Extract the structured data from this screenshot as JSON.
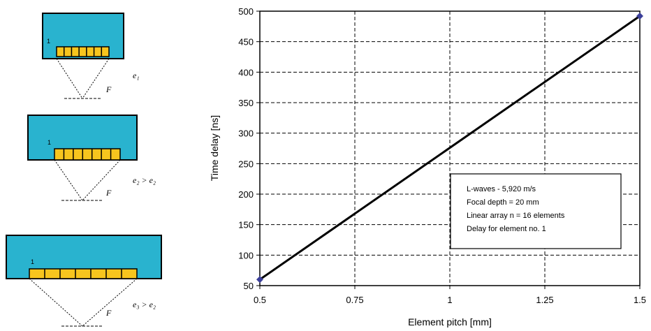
{
  "chart_data": {
    "type": "line",
    "xlabel": "Element pitch [mm]",
    "ylabel": "Time delay [ns]",
    "xlim": [
      0.5,
      1.5
    ],
    "ylim": [
      50,
      500
    ],
    "xticks": [
      "0.5",
      "0.75",
      "1",
      "1.25",
      "1.5"
    ],
    "yticks": [
      "50",
      "100",
      "150",
      "200",
      "250",
      "300",
      "350",
      "400",
      "450",
      "500"
    ],
    "grid": true,
    "series": [
      {
        "x": [
          0.5,
          1.5
        ],
        "y": [
          60,
          492
        ]
      }
    ],
    "colors": {
      "line": "#000000",
      "marker": "#3b3f9a"
    },
    "legend_box": {
      "lines": [
        "L-waves - 5,920 m/s",
        "Focal depth = 20 mm",
        "Linear array n = 16 elements",
        "Delay for element no. 1"
      ]
    }
  },
  "diagrams": [
    {
      "element_label": "1",
      "focus_label": "F",
      "caption": "e₁",
      "elements": 7
    },
    {
      "element_label": "1",
      "focus_label": "F",
      "caption": "e₂ > e₂",
      "elements": 7
    },
    {
      "element_label": "1",
      "focus_label": "F",
      "caption": "e₃ > e₂",
      "elements": 7
    }
  ],
  "colors": {
    "probe": "#29b3cf",
    "element": "#f7c51e"
  }
}
